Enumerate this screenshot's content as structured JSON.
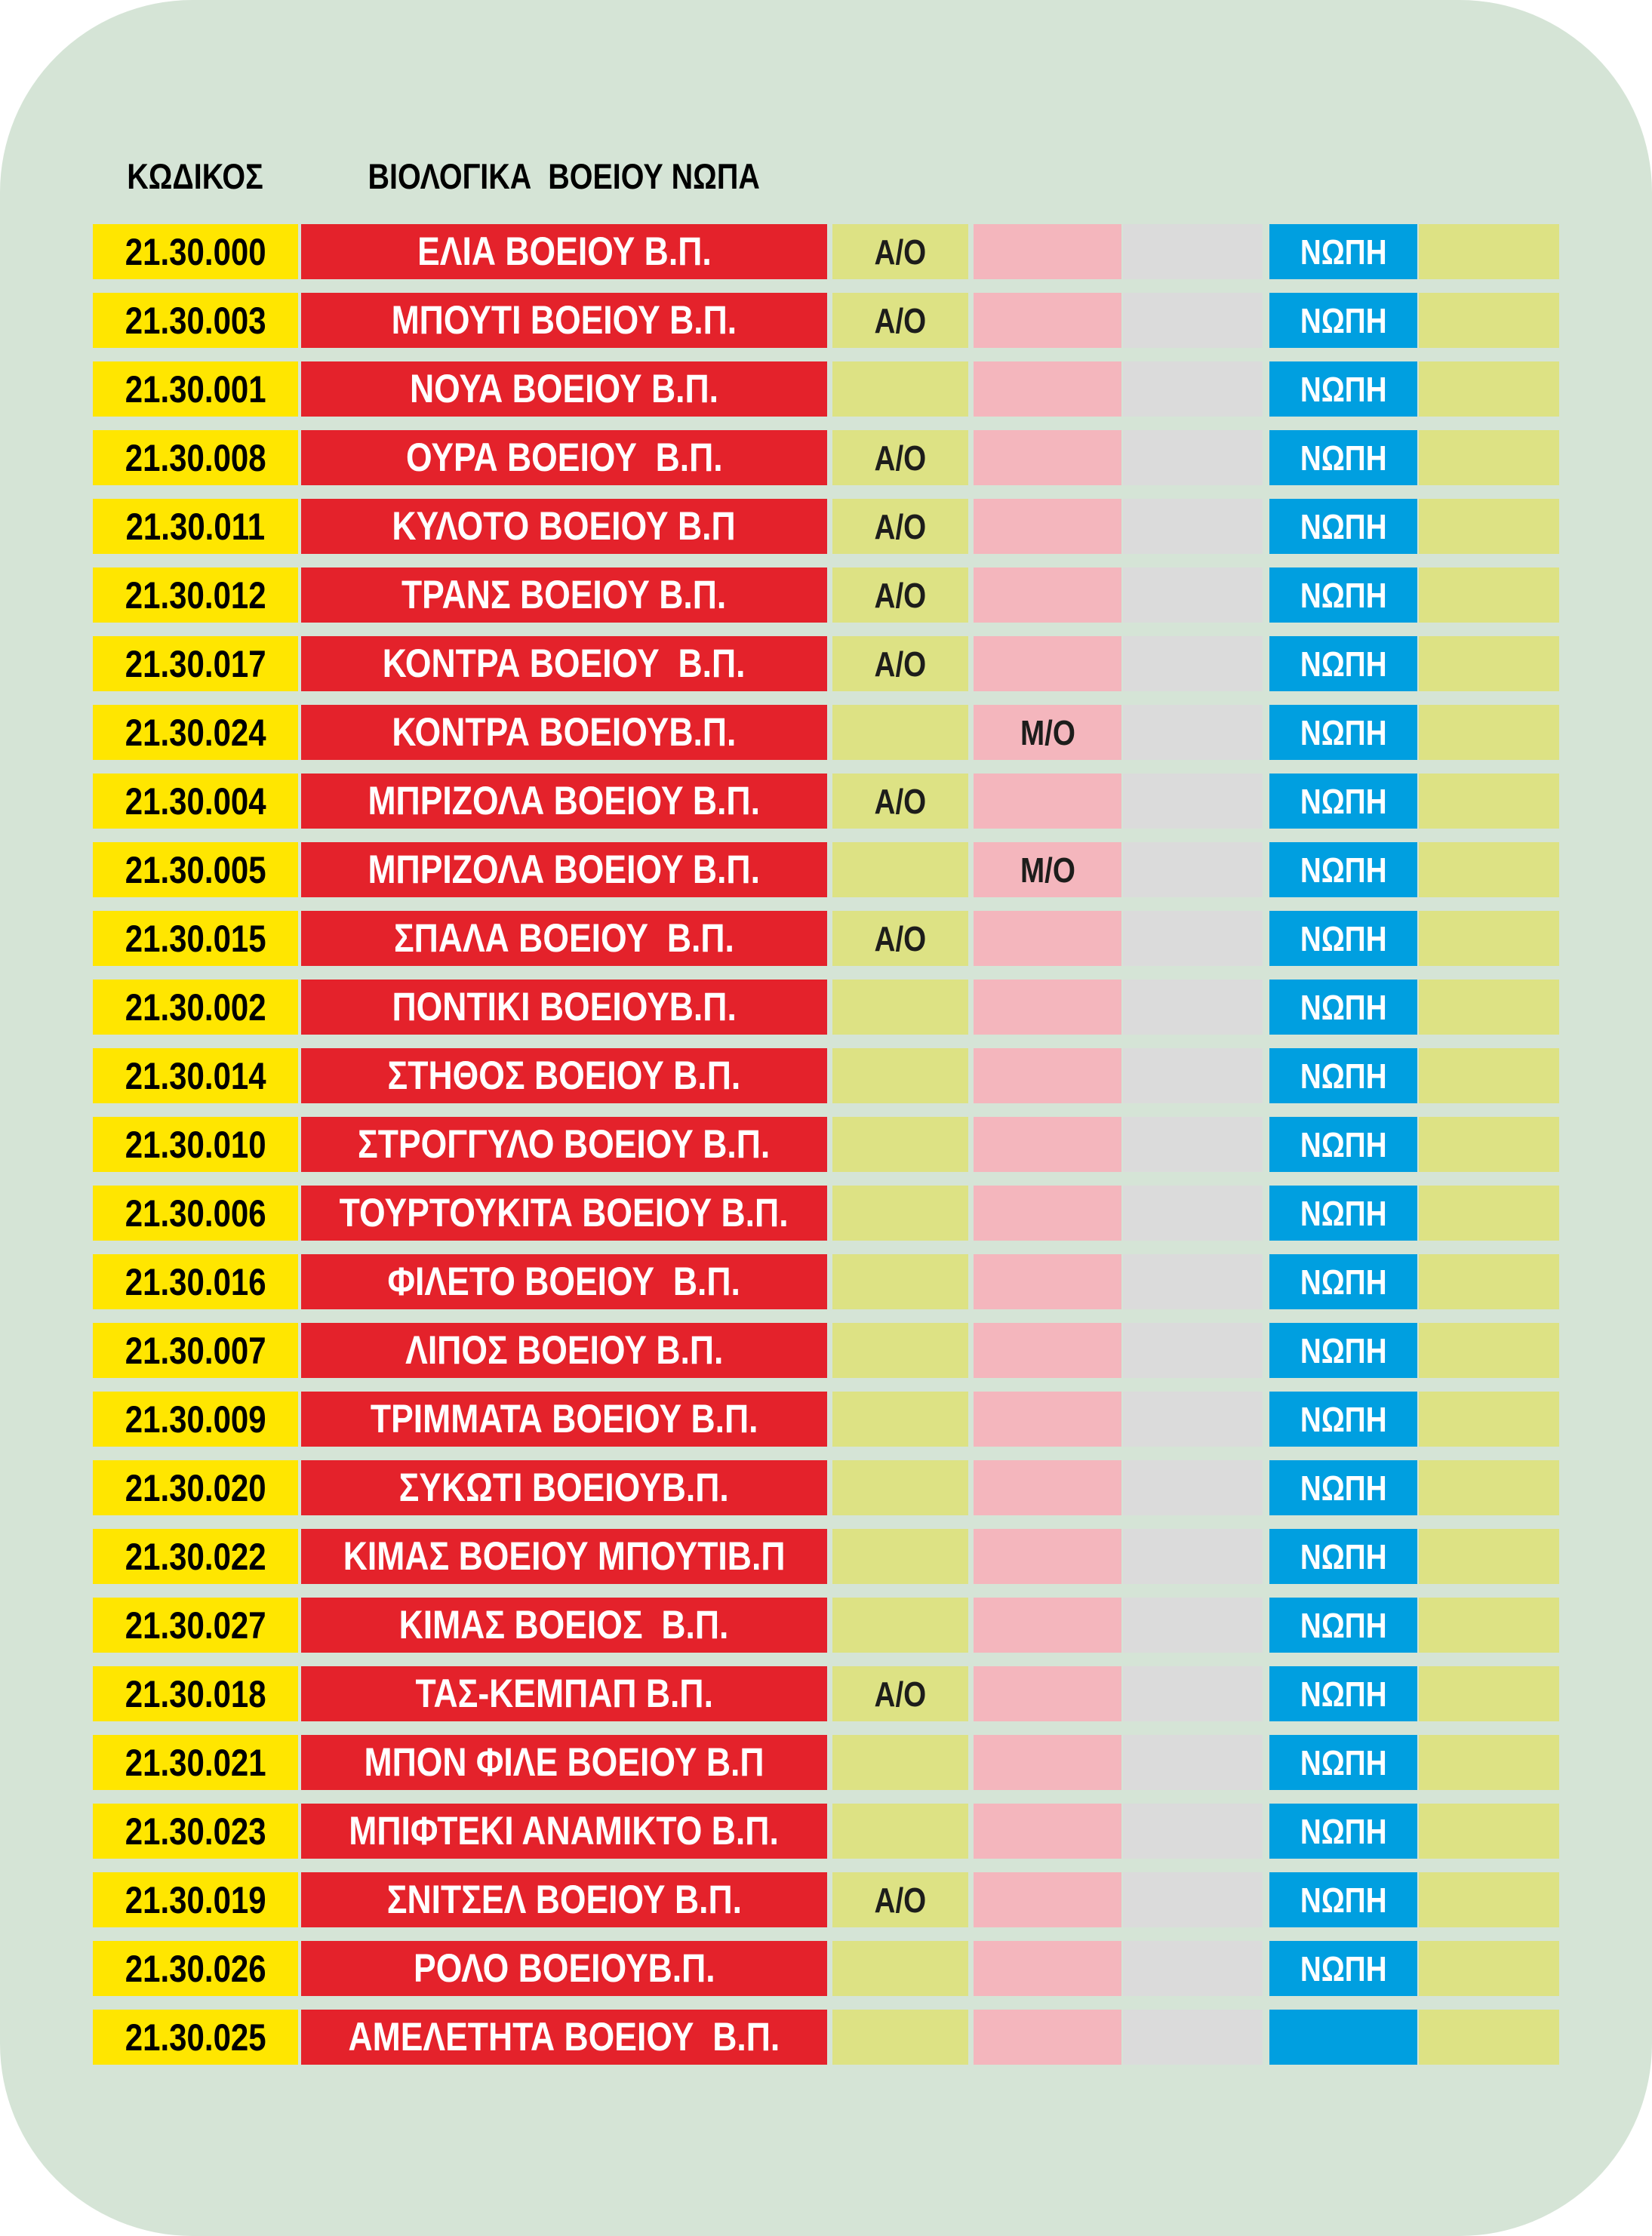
{
  "page": {
    "background": "#ffffff",
    "panel_color": "#d5e4d6"
  },
  "header": {
    "code_label": "ΚΩΔΙΚΟΣ",
    "category_label": "ΒΙΟΛΟΓΙΚΑ  ΒΟΕΙΟΥ ΝΩΠΑ"
  },
  "colors": {
    "code_bg": "#ffe600",
    "name_bg": "#e4222b",
    "ao_bg": "#dde284",
    "mo_bg": "#f4b6bd",
    "gray_bg": "#dbdbdb",
    "fresh_bg": "#009fe0",
    "tail_bg": "#dde284"
  },
  "table": {
    "rows": [
      {
        "code": "21.30.000",
        "name": "ΕΛΙΑ ΒΟΕΙΟΥ Β.Π.",
        "ao": "Α/Ο",
        "mo": "",
        "fresh": "ΝΩΠΗ"
      },
      {
        "code": "21.30.003",
        "name": "ΜΠΟΥΤΙ ΒΟΕΙΟΥ Β.Π.",
        "ao": "Α/Ο",
        "mo": "",
        "fresh": "ΝΩΠΗ"
      },
      {
        "code": "21.30.001",
        "name": "ΝΟΥΑ ΒΟΕΙΟΥ Β.Π.",
        "ao": "",
        "mo": "",
        "fresh": "ΝΩΠΗ"
      },
      {
        "code": "21.30.008",
        "name": "ΟΥΡΑ ΒΟΕΙΟΥ  Β.Π.",
        "ao": "Α/Ο",
        "mo": "",
        "fresh": "ΝΩΠΗ"
      },
      {
        "code": "21.30.011",
        "name": "ΚΥΛΟΤΟ ΒΟΕΙΟΥ Β.Π",
        "ao": "Α/Ο",
        "mo": "",
        "fresh": "ΝΩΠΗ"
      },
      {
        "code": "21.30.012",
        "name": "ΤΡΑΝΣ ΒΟΕΙΟΥ Β.Π.",
        "ao": "Α/Ο",
        "mo": "",
        "fresh": "ΝΩΠΗ"
      },
      {
        "code": "21.30.017",
        "name": "ΚΟΝΤΡΑ ΒΟΕΙΟΥ  Β.Π.",
        "ao": "Α/Ο",
        "mo": "",
        "fresh": "ΝΩΠΗ"
      },
      {
        "code": "21.30.024",
        "name": "ΚΟΝΤΡΑ ΒΟΕΙΟΥΒ.Π.",
        "ao": "",
        "mo": "Μ/Ο",
        "fresh": "ΝΩΠΗ"
      },
      {
        "code": "21.30.004",
        "name": "ΜΠΡΙΖΟΛΑ ΒΟΕΙΟΥ Β.Π.",
        "ao": "Α/Ο",
        "mo": "",
        "fresh": "ΝΩΠΗ"
      },
      {
        "code": "21.30.005",
        "name": "ΜΠΡΙΖΟΛΑ ΒΟΕΙΟΥ Β.Π.",
        "ao": "",
        "mo": "Μ/Ο",
        "fresh": "ΝΩΠΗ"
      },
      {
        "code": "21.30.015",
        "name": "ΣΠΑΛΑ ΒΟΕΙΟΥ  Β.Π.",
        "ao": "Α/Ο",
        "mo": "",
        "fresh": "ΝΩΠΗ"
      },
      {
        "code": "21.30.002",
        "name": "ΠΟΝΤΙΚΙ ΒΟΕΙΟΥΒ.Π.",
        "ao": "",
        "mo": "",
        "fresh": "ΝΩΠΗ"
      },
      {
        "code": "21.30.014",
        "name": "ΣΤΗΘΟΣ ΒΟΕΙΟΥ Β.Π.",
        "ao": "",
        "mo": "",
        "fresh": "ΝΩΠΗ"
      },
      {
        "code": "21.30.010",
        "name": "ΣΤΡΟΓΓΥΛΟ ΒΟΕΙΟΥ Β.Π.",
        "ao": "",
        "mo": "",
        "fresh": "ΝΩΠΗ"
      },
      {
        "code": "21.30.006",
        "name": "ΤΟΥΡΤΟΥΚΙΤΑ ΒΟΕΙΟΥ Β.Π.",
        "ao": "",
        "mo": "",
        "fresh": "ΝΩΠΗ"
      },
      {
        "code": "21.30.016",
        "name": "ΦΙΛΕΤΟ ΒΟΕΙΟΥ  Β.Π.",
        "ao": "",
        "mo": "",
        "fresh": "ΝΩΠΗ"
      },
      {
        "code": "21.30.007",
        "name": "ΛΙΠΟΣ ΒΟΕΙΟΥ Β.Π.",
        "ao": "",
        "mo": "",
        "fresh": "ΝΩΠΗ"
      },
      {
        "code": "21.30.009",
        "name": "ΤΡΙΜΜΑΤΑ ΒΟΕΙΟΥ Β.Π.",
        "ao": "",
        "mo": "",
        "fresh": "ΝΩΠΗ"
      },
      {
        "code": "21.30.020",
        "name": "ΣΥΚΩΤΙ ΒΟΕΙΟΥΒ.Π.",
        "ao": "",
        "mo": "",
        "fresh": "ΝΩΠΗ"
      },
      {
        "code": "21.30.022",
        "name": "ΚΙΜΑΣ ΒΟΕΙΟΥ ΜΠΟΥΤΙΒ.Π",
        "ao": "",
        "mo": "",
        "fresh": "ΝΩΠΗ"
      },
      {
        "code": "21.30.027",
        "name": "ΚΙΜΑΣ ΒΟΕΙΟΣ  Β.Π.",
        "ao": "",
        "mo": "",
        "fresh": "ΝΩΠΗ"
      },
      {
        "code": "21.30.018",
        "name": "ΤΑΣ-ΚΕΜΠΑΠ Β.Π.",
        "ao": "Α/Ο",
        "mo": "",
        "fresh": "ΝΩΠΗ"
      },
      {
        "code": "21.30.021",
        "name": "ΜΠΟΝ ΦΙΛΕ ΒΟΕΙΟΥ Β.Π",
        "ao": "",
        "mo": "",
        "fresh": "ΝΩΠΗ"
      },
      {
        "code": "21.30.023",
        "name": "ΜΠΙΦΤΕΚΙ ΑΝΑΜΙΚΤΟ Β.Π.",
        "ao": "",
        "mo": "",
        "fresh": "ΝΩΠΗ"
      },
      {
        "code": "21.30.019",
        "name": "ΣΝΙΤΣΕΛ ΒΟΕΙΟΥ Β.Π.",
        "ao": "Α/Ο",
        "mo": "",
        "fresh": "ΝΩΠΗ"
      },
      {
        "code": "21.30.026",
        "name": "ΡΟΛΟ ΒΟΕΙΟΥΒ.Π.",
        "ao": "",
        "mo": "",
        "fresh": "ΝΩΠΗ"
      },
      {
        "code": "21.30.025",
        "name": "ΑΜΕΛΕΤΗΤΑ ΒΟΕΙΟΥ  Β.Π.",
        "ao": "",
        "mo": "",
        "fresh": ""
      }
    ]
  }
}
